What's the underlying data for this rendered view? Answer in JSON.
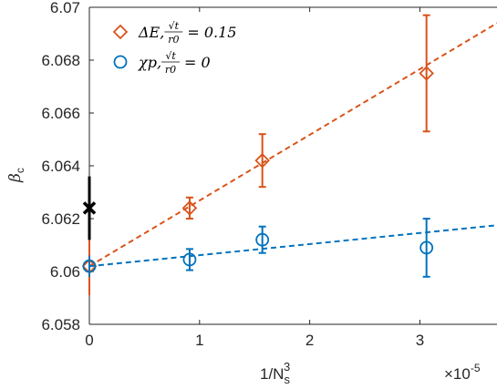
{
  "chart_data": {
    "type": "scatter",
    "xlabel_main": "1/N",
    "xlabel_sub": "s",
    "xlabel_sup": "3",
    "x_multiplier": "×10",
    "x_multiplier_exp": "-5",
    "ylabel_symbol": "β",
    "ylabel_sub": "c",
    "xlim": [
      0,
      3.7
    ],
    "ylim": [
      6.058,
      6.07
    ],
    "x_ticks": [
      0,
      1,
      2,
      3
    ],
    "x_tick_labels": [
      "0",
      "1",
      "2",
      "3"
    ],
    "y_ticks": [
      6.058,
      6.06,
      6.062,
      6.064,
      6.066,
      6.068,
      6.07
    ],
    "y_tick_labels": [
      "6.058",
      "6.06",
      "6.062",
      "6.064",
      "6.066",
      "6.068",
      "6.07"
    ],
    "grid": false,
    "legend_position": "top-left",
    "series": [
      {
        "name": "ΔE, √t/r0 = 0.15",
        "legend_prefix": "ΔE,",
        "legend_frac_num": "√t",
        "legend_frac_den": "r0",
        "legend_value": "= 0.15",
        "marker": "diamond",
        "color": "#D95319",
        "x": [
          0.91,
          1.57,
          3.06
        ],
        "y": [
          6.0624,
          6.0642,
          6.0675
        ],
        "err": [
          0.0004,
          0.001,
          0.0022
        ],
        "fit": {
          "x": [
            0,
            3.7
          ],
          "y": [
            6.0602,
            6.0694
          ]
        },
        "extrapolated": {
          "x": 0,
          "y": 6.0602,
          "err": 0.0011
        }
      },
      {
        "name": "χp, √t/r0 = 0",
        "legend_prefix": "χp,",
        "legend_frac_num": "√t",
        "legend_frac_den": "r0",
        "legend_value": "= 0",
        "marker": "circle",
        "color": "#0072BD",
        "x": [
          0.91,
          1.57,
          3.06
        ],
        "y": [
          6.06045,
          6.0612,
          6.0609
        ],
        "err": [
          0.0004,
          0.0005,
          0.0011
        ],
        "fit": {
          "x": [
            0,
            3.7
          ],
          "y": [
            6.0602,
            6.06175
          ]
        },
        "extrapolated": {
          "x": 0,
          "y": 6.0602,
          "err": 0.0004
        }
      }
    ],
    "reference_point": {
      "marker": "x",
      "color": "#000000",
      "x": 0,
      "y": 6.0624,
      "err": 0.0012
    }
  }
}
